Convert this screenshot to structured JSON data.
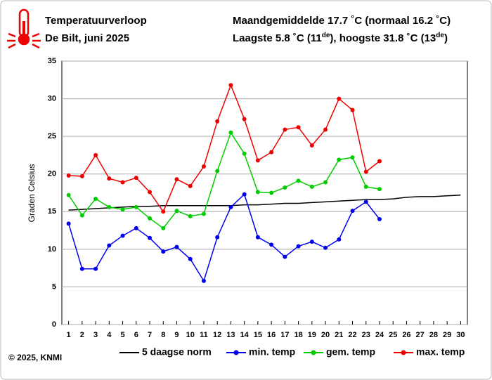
{
  "chart_data": {
    "type": "line",
    "title": "Temperatuurverloop",
    "subtitle": "De Bilt, juni 2025",
    "summary_line_1": "Maandgemiddelde 17.7 ˚C (normaal 16.2 ˚C)",
    "summary_line_2": [
      "Laagste 5.8 ˚C (11",
      "de",
      "), hoogste 31.8 ˚C (13",
      "de",
      ")"
    ],
    "ylabel": "Graden Celsius",
    "copyright": "© 2025, KNMI",
    "x": [
      1,
      2,
      3,
      4,
      5,
      6,
      7,
      8,
      9,
      10,
      11,
      12,
      13,
      14,
      15,
      16,
      17,
      18,
      19,
      20,
      21,
      22,
      23,
      24,
      25,
      26,
      27,
      28,
      29,
      30
    ],
    "xlim": [
      0.5,
      30.5
    ],
    "xticks": [
      1,
      2,
      3,
      4,
      5,
      6,
      7,
      8,
      9,
      10,
      11,
      12,
      13,
      14,
      15,
      16,
      17,
      18,
      19,
      20,
      21,
      22,
      23,
      24,
      25,
      26,
      27,
      28,
      29,
      30
    ],
    "ylim": [
      0,
      35
    ],
    "yticks": [
      0,
      5,
      10,
      15,
      20,
      25,
      30,
      35
    ],
    "grid": true,
    "series": [
      {
        "name": "5 daagse norm",
        "color": "#000000",
        "markers": false,
        "values": [
          15.2,
          15.3,
          15.4,
          15.5,
          15.6,
          15.7,
          15.7,
          15.8,
          15.8,
          15.8,
          15.8,
          15.8,
          15.8,
          15.9,
          15.9,
          16.0,
          16.1,
          16.1,
          16.2,
          16.3,
          16.4,
          16.5,
          16.6,
          16.6,
          16.7,
          16.9,
          17.0,
          17.0,
          17.1,
          17.2
        ]
      },
      {
        "name": "min. temp",
        "color": "#0000ee",
        "markers": true,
        "values": [
          13.4,
          7.4,
          7.4,
          10.5,
          11.8,
          12.8,
          11.5,
          9.7,
          10.3,
          8.7,
          5.8,
          11.6,
          15.6,
          17.3,
          11.6,
          10.6,
          9.0,
          10.4,
          11.0,
          10.2,
          11.3,
          15.1,
          16.3,
          14.0,
          null,
          null,
          null,
          null,
          null,
          null
        ]
      },
      {
        "name": "gem. temp",
        "color": "#00cc00",
        "markers": true,
        "values": [
          17.2,
          14.5,
          16.7,
          15.6,
          15.3,
          15.6,
          14.1,
          12.8,
          15.1,
          14.4,
          14.7,
          20.4,
          25.5,
          22.7,
          17.6,
          17.5,
          18.2,
          19.1,
          18.3,
          18.9,
          21.9,
          22.2,
          18.3,
          18.0,
          null,
          null,
          null,
          null,
          null,
          null
        ]
      },
      {
        "name": "max. temp",
        "color": "#ee0000",
        "markers": true,
        "values": [
          19.8,
          19.7,
          22.5,
          19.4,
          18.9,
          19.5,
          17.6,
          15.0,
          19.3,
          18.4,
          21.0,
          27.0,
          31.8,
          27.3,
          21.8,
          22.9,
          25.9,
          26.2,
          23.8,
          25.9,
          30.0,
          28.5,
          20.3,
          21.7,
          null,
          null,
          null,
          null,
          null,
          null
        ]
      }
    ]
  }
}
